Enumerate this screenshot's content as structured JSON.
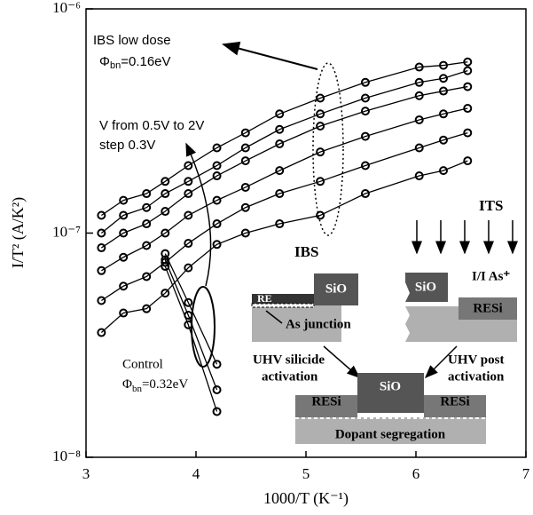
{
  "chart_data": {
    "type": "line",
    "x_label": "1000/T (K⁻¹)",
    "y_label": "I/T² (A/K²)",
    "xlim": [
      3,
      7
    ],
    "xticks": [
      3,
      4,
      5,
      6,
      7
    ],
    "ylim": [
      1e-08,
      1e-06
    ],
    "log_y": true,
    "yticks": [
      {
        "value": 1e-08,
        "label": "10⁻⁸"
      },
      {
        "value": 1e-07,
        "label": "10⁻⁷"
      },
      {
        "value": 1e-06,
        "label": "10⁻⁶"
      }
    ],
    "x": [
      3.14,
      3.34,
      3.55,
      3.72,
      3.93,
      4.19,
      4.45,
      4.76,
      5.13,
      5.54,
      6.03,
      6.25,
      6.47
    ],
    "series": [
      {
        "color": "#000000",
        "values": [
          1.2e-07,
          1.4e-07,
          1.5e-07,
          1.7e-07,
          2e-07,
          2.4e-07,
          2.8e-07,
          3.4e-07,
          4e-07,
          4.7e-07,
          5.5e-07,
          5.6e-07,
          5.8e-07
        ]
      },
      {
        "color": "#000000",
        "values": [
          1e-07,
          1.2e-07,
          1.3e-07,
          1.5e-07,
          1.7e-07,
          2e-07,
          2.4e-07,
          2.9e-07,
          3.4e-07,
          4e-07,
          4.7e-07,
          4.9e-07,
          5.3e-07
        ]
      },
      {
        "color": "#000000",
        "values": [
          8.6e-08,
          1e-07,
          1.1e-07,
          1.25e-07,
          1.5e-07,
          1.8e-07,
          2.1e-07,
          2.5e-07,
          3e-07,
          3.5e-07,
          4.1e-07,
          4.3e-07,
          4.5e-07
        ]
      },
      {
        "color": "#000000",
        "values": [
          6.8e-08,
          7.8e-08,
          8.8e-08,
          1e-07,
          1.2e-07,
          1.4e-07,
          1.6e-07,
          1.9e-07,
          2.3e-07,
          2.7e-07,
          3.2e-07,
          3.4e-07,
          3.6e-07
        ]
      },
      {
        "color": "#000000",
        "values": [
          5e-08,
          5.8e-08,
          6.4e-08,
          7.4e-08,
          9e-08,
          1.1e-07,
          1.3e-07,
          1.5e-07,
          1.7e-07,
          2e-07,
          2.4e-07,
          2.6e-07,
          2.8e-07
        ]
      },
      {
        "color": "#000000",
        "values": [
          3.6e-08,
          4.4e-08,
          4.6e-08,
          5.4e-08,
          7e-08,
          8.9e-08,
          1e-07,
          1.1e-07,
          1.2e-07,
          1.5e-07,
          1.8e-07,
          1.9e-07,
          2.1e-07
        ]
      },
      {
        "color": "#000000",
        "values": [
          null,
          null,
          null,
          8.1e-08,
          4.9e-08,
          2.6e-08,
          null,
          null,
          null,
          null,
          null,
          null,
          null
        ]
      },
      {
        "color": "#000000",
        "values": [
          null,
          null,
          null,
          7.6e-08,
          4.3e-08,
          2e-08,
          null,
          null,
          null,
          null,
          null,
          null,
          null
        ]
      },
      {
        "color": "#000000",
        "values": [
          null,
          null,
          null,
          7.1e-08,
          3.9e-08,
          1.6e-08,
          null,
          null,
          null,
          null,
          null,
          null,
          null
        ]
      }
    ],
    "annotations": {
      "ibs_low_dose": "IBS low dose",
      "phi_low": {
        "symbol": "Φ",
        "subscript": "bn",
        "value": "=0.16eV"
      },
      "v_range": "V from 0.5V to 2V",
      "v_step": "step 0.3V",
      "control": "Control",
      "phi_control": {
        "symbol": "Φ",
        "subscript": "bn",
        "value": "=0.32eV"
      }
    }
  },
  "inset": {
    "its": "ITS",
    "ibs": "IBS",
    "ibs_sio": "SiO",
    "ibs_re": "RE",
    "as_junction": "As junction",
    "its_sio": "SiO",
    "implant": "I/I As⁺",
    "its_resi": "RESi",
    "left_step": [
      "UHV silicide",
      "activation"
    ],
    "right_step": [
      "UHV post",
      "activation"
    ],
    "final_sio": "SiO",
    "final_resi_left": "RESi",
    "final_resi_right": "RESi",
    "dopant": "Dopant segregation"
  }
}
